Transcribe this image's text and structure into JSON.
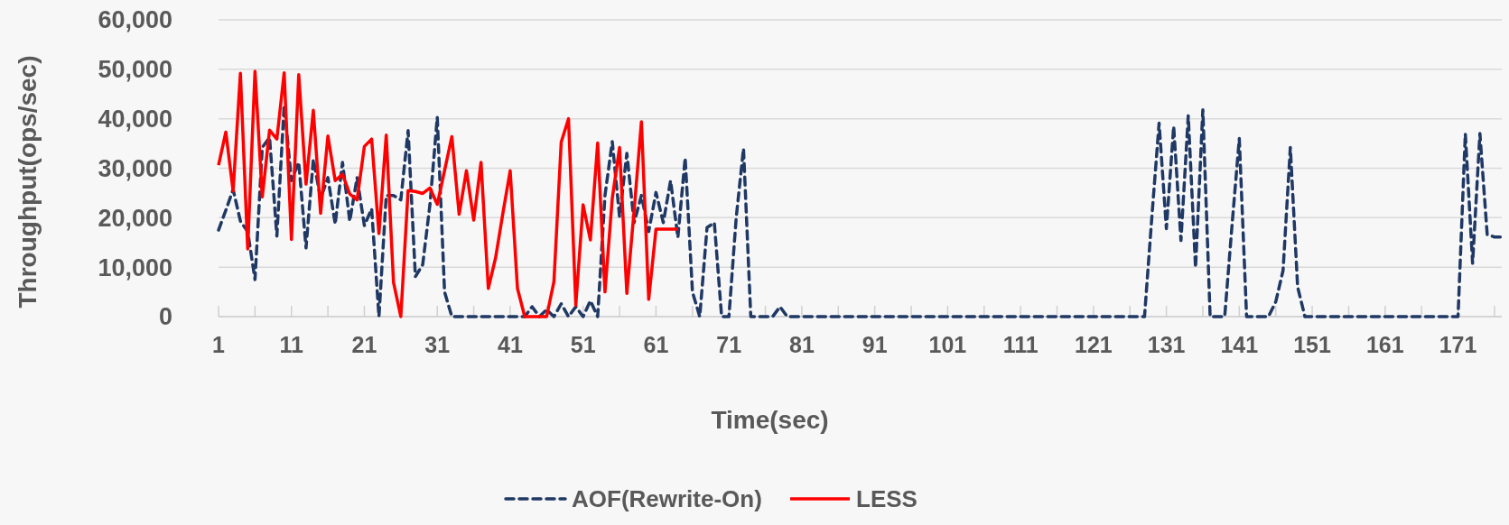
{
  "chart_data": {
    "type": "line",
    "xlabel": "Time(sec)",
    "ylabel": "Throughput(ops/sec)",
    "x": [
      1,
      2,
      3,
      4,
      5,
      6,
      7,
      8,
      9,
      10,
      11,
      12,
      13,
      14,
      15,
      16,
      17,
      18,
      19,
      20,
      21,
      22,
      23,
      24,
      25,
      26,
      27,
      28,
      29,
      30,
      31,
      32,
      33,
      34,
      35,
      36,
      37,
      38,
      39,
      40,
      41,
      42,
      43,
      44,
      45,
      46,
      47,
      48,
      49,
      50,
      51,
      52,
      53,
      54,
      55,
      56,
      57,
      58,
      59,
      60,
      61,
      62,
      63,
      64,
      65,
      66,
      67,
      68,
      69,
      70,
      71,
      72,
      73,
      74,
      75,
      76,
      77,
      78,
      79,
      80,
      81,
      82,
      83,
      84,
      85,
      86,
      87,
      88,
      89,
      90,
      91,
      92,
      93,
      94,
      95,
      96,
      97,
      98,
      99,
      100,
      101,
      102,
      103,
      104,
      105,
      106,
      107,
      108,
      109,
      110,
      111,
      112,
      113,
      114,
      115,
      116,
      117,
      118,
      119,
      120,
      121,
      122,
      123,
      124,
      125,
      126,
      127,
      128,
      129,
      130,
      131,
      132,
      133,
      134,
      135,
      136,
      137,
      138,
      139,
      140,
      141,
      142,
      143,
      144,
      145,
      146,
      147,
      148,
      149,
      150,
      151,
      152,
      153,
      154,
      155,
      156,
      157,
      158,
      159,
      160,
      161,
      162,
      163,
      164,
      165,
      166,
      167,
      168,
      169,
      170,
      171,
      172,
      173,
      174,
      175,
      176,
      177
    ],
    "xlim": [
      1,
      177
    ],
    "xticks": [
      1,
      {
        "value": 6,
        "label": null
      },
      11,
      {
        "value": 16,
        "label": null
      },
      21,
      {
        "value": 26,
        "label": null
      },
      31,
      {
        "value": 36,
        "label": null
      },
      41,
      {
        "value": 46,
        "label": null
      },
      51,
      {
        "value": 56,
        "label": null
      },
      61,
      {
        "value": 66,
        "label": null
      },
      71,
      {
        "value": 76,
        "label": null
      },
      81,
      {
        "value": 86,
        "label": null
      },
      91,
      {
        "value": 96,
        "label": null
      },
      101,
      {
        "value": 106,
        "label": null
      },
      111,
      {
        "value": 116,
        "label": null
      },
      121,
      {
        "value": 126,
        "label": null
      },
      131,
      {
        "value": 136,
        "label": null
      },
      141,
      {
        "value": 146,
        "label": null
      },
      151,
      {
        "value": 156,
        "label": null
      },
      161,
      {
        "value": 166,
        "label": null
      },
      171,
      {
        "value": 176,
        "label": null
      }
    ],
    "ylim": [
      0,
      60000
    ],
    "yticks": [
      0,
      {
        "value": 10000,
        "label": "10,000"
      },
      {
        "value": 20000,
        "label": "20,000"
      },
      {
        "value": 30000,
        "label": "30,000"
      },
      {
        "value": 40000,
        "label": "40,000"
      },
      {
        "value": 50000,
        "label": "50,000"
      },
      {
        "value": 60000,
        "label": "60,000"
      }
    ],
    "grid": "y",
    "legend": "bottom",
    "marker": "none",
    "series": [
      {
        "name": "AOF(Rewrite-On)",
        "color": "#1f3864",
        "line_style": "dashed",
        "values": [
          17500,
          21500,
          25700,
          19300,
          17200,
          7500,
          34200,
          36200,
          16300,
          42700,
          27500,
          31200,
          13900,
          31800,
          23900,
          28100,
          18700,
          31200,
          19300,
          28100,
          18400,
          21800,
          0,
          24500,
          24500,
          23600,
          37600,
          8100,
          10500,
          22700,
          40300,
          5000,
          0,
          0,
          0,
          0,
          0,
          0,
          0,
          0,
          0,
          0,
          0,
          2000,
          0,
          1400,
          0,
          2600,
          0,
          2000,
          0,
          3200,
          0,
          24500,
          35400,
          20200,
          33000,
          19000,
          24500,
          17200,
          25100,
          19000,
          27500,
          16000,
          32100,
          5000,
          0,
          18000,
          19000,
          0,
          0,
          20000,
          34000,
          0,
          0,
          0,
          0,
          2000,
          0,
          0,
          0,
          0,
          0,
          0,
          0,
          0,
          0,
          0,
          0,
          0,
          0,
          0,
          0,
          0,
          0,
          0,
          0,
          0,
          0,
          0,
          0,
          0,
          0,
          0,
          0,
          0,
          0,
          0,
          0,
          0,
          0,
          0,
          0,
          0,
          0,
          0,
          0,
          0,
          0,
          0,
          0,
          0,
          0,
          0,
          0,
          0,
          0,
          0,
          20000,
          39100,
          17800,
          38500,
          15400,
          40600,
          9900,
          41800,
          0,
          0,
          0,
          18400,
          36000,
          0,
          0,
          0,
          0,
          3000,
          9300,
          34200,
          6000,
          0,
          0,
          0,
          0,
          0,
          0,
          0,
          0,
          0,
          0,
          0,
          0,
          0,
          0,
          0,
          0,
          0,
          0,
          0,
          0,
          0,
          0,
          37000,
          10800,
          37000,
          16600,
          16100,
          16100
        ]
      },
      {
        "name": "LESS",
        "color": "#ff0000",
        "line_style": "solid",
        "x": [
          1,
          2,
          3,
          4,
          5,
          6,
          7,
          8,
          9,
          10,
          11,
          12,
          13,
          14,
          15,
          16,
          17,
          18,
          19,
          20,
          21,
          22,
          23,
          24,
          25,
          26,
          27,
          28,
          29,
          30,
          31,
          32,
          33,
          34,
          35,
          36,
          37,
          38,
          39,
          40,
          41,
          42,
          43,
          44,
          45,
          46,
          47,
          48,
          49,
          50,
          51,
          52,
          53,
          54,
          55,
          56,
          57,
          58,
          59,
          60,
          61,
          62,
          63,
          64
        ],
        "values": [
          30600,
          37300,
          25400,
          49200,
          13700,
          49600,
          24200,
          37700,
          35900,
          49300,
          15600,
          48900,
          26800,
          41700,
          20900,
          36500,
          27500,
          28800,
          24800,
          23600,
          34400,
          35900,
          16800,
          36700,
          6900,
          0,
          25500,
          25300,
          24900,
          26000,
          22700,
          29500,
          36400,
          20700,
          29500,
          19500,
          31200,
          5700,
          11900,
          20900,
          29500,
          5700,
          0,
          0,
          0,
          0,
          7100,
          35300,
          40000,
          2300,
          22600,
          15500,
          35100,
          5000,
          23900,
          34200,
          4700,
          21500,
          39400,
          3500,
          17700,
          17700,
          17700,
          17700
        ]
      }
    ]
  }
}
